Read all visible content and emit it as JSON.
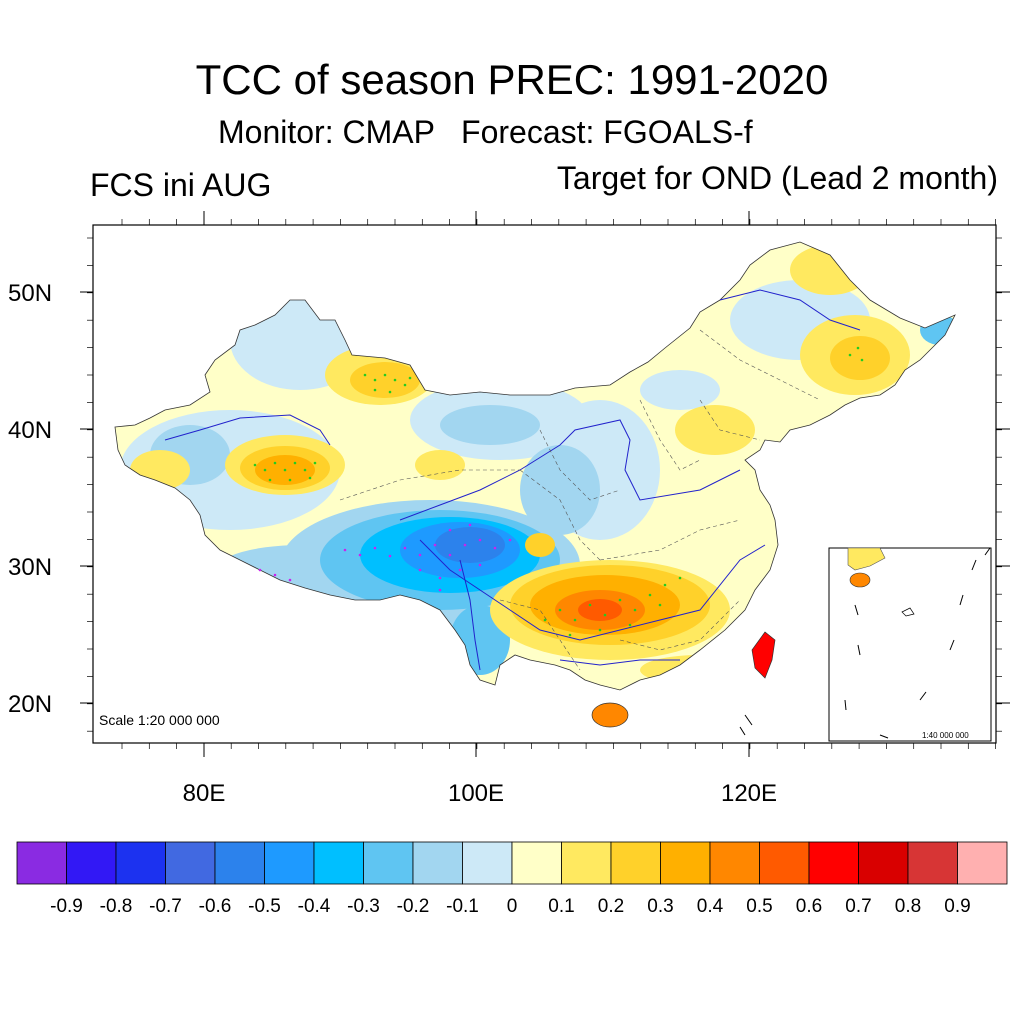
{
  "title": "TCC of season PREC: 1991-2020",
  "subtitle": "Monitor: CMAP   Forecast: FGOALS-f",
  "left_string": "FCS ini AUG",
  "right_string": "Target for OND (Lead 2 month)",
  "lat_labels": [
    "50N",
    "40N",
    "30N",
    "20N"
  ],
  "lon_labels": [
    "80E",
    "100E",
    "120E"
  ],
  "scale_main": "Scale 1:20 000 000",
  "scale_inset": "1:40 000 000",
  "colors": {
    "neg9": "#8a2be2",
    "neg8": "#3218f5",
    "neg7": "#1c32f0",
    "neg6": "#4169e1",
    "neg5": "#2c82ec",
    "neg4": "#1e9aff",
    "neg3": "#00bfff",
    "neg2": "#5fc5f2",
    "neg1": "#a2d6f0",
    "zero": "#cde9f7",
    "pos0": "#ffffc8",
    "pos1": "#ffe960",
    "pos2": "#ffd12a",
    "pos3": "#ffb000",
    "pos4": "#ff8700",
    "pos5": "#ff5a00",
    "pos6": "#ff0000",
    "pos7": "#d90000",
    "pos8": "#d73535",
    "pos9": "#ffb0b0",
    "river": "#2222cc",
    "stipple": "#22cc22"
  },
  "chart_data": {
    "type": "heatmap",
    "title": "TCC of season PREC: 1991-2020",
    "xlabel": "",
    "ylabel": "",
    "xlim": [
      72,
      138
    ],
    "ylim": [
      17,
      55
    ],
    "x_ticks": [
      "80E",
      "100E",
      "120E"
    ],
    "y_ticks": [
      "20N",
      "30N",
      "40N",
      "50N"
    ],
    "colorbar_levels": [
      -0.9,
      -0.8,
      -0.7,
      -0.6,
      -0.5,
      -0.4,
      -0.3,
      -0.2,
      -0.1,
      0,
      0.1,
      0.2,
      0.3,
      0.4,
      0.5,
      0.6,
      0.7,
      0.8,
      0.9
    ],
    "colorbar_labels": [
      "-0.9",
      "-0.8",
      "-0.7",
      "-0.6",
      "-0.5",
      "-0.4",
      "-0.3",
      "-0.2",
      "-0.1",
      "0",
      "0.1",
      "0.2",
      "0.3",
      "0.4",
      "0.5",
      "0.6",
      "0.7",
      "0.8",
      "0.9"
    ],
    "colorbar_colors": [
      "#8a2be2",
      "#3218f5",
      "#1c32f0",
      "#4169e1",
      "#2c82ec",
      "#1e9aff",
      "#00bfff",
      "#5fc5f2",
      "#a2d6f0",
      "#cde9f7",
      "#ffffc8",
      "#ffe960",
      "#ffd12a",
      "#ffb000",
      "#ff8700",
      "#ff5a00",
      "#ff0000",
      "#d90000",
      "#d73535",
      "#ffb0b0"
    ]
  }
}
